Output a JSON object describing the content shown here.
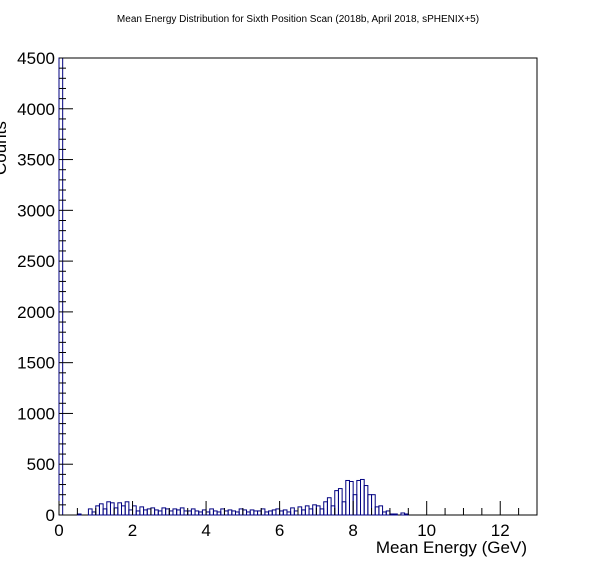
{
  "chart_data": {
    "type": "histogram",
    "title": "Mean Energy Distribution for Sixth Position Scan (2018b, April 2018, sPHENIX+5)",
    "xlabel": "Mean Energy (GeV)",
    "ylabel": "Counts",
    "xlim": [
      0,
      13
    ],
    "ylim": [
      0,
      4500
    ],
    "x_ticks": [
      0,
      2,
      4,
      6,
      8,
      10,
      12
    ],
    "y_ticks": [
      0,
      500,
      1000,
      1500,
      2000,
      2500,
      3000,
      3500,
      4000,
      4500
    ],
    "grid": false,
    "legend": "none",
    "line_color": "#000080",
    "bin_width": 0.1,
    "bin_start": 0.0,
    "values": [
      4500,
      0,
      0,
      0,
      0,
      10,
      0,
      0,
      60,
      30,
      90,
      110,
      60,
      130,
      120,
      70,
      120,
      90,
      130,
      50,
      90,
      40,
      80,
      50,
      60,
      70,
      50,
      40,
      70,
      60,
      40,
      60,
      50,
      70,
      40,
      40,
      60,
      40,
      30,
      50,
      30,
      60,
      40,
      30,
      60,
      40,
      50,
      40,
      30,
      60,
      50,
      30,
      50,
      40,
      40,
      60,
      30,
      40,
      50,
      60,
      40,
      50,
      30,
      70,
      40,
      80,
      50,
      90,
      60,
      100,
      90,
      60,
      130,
      170,
      90,
      240,
      260,
      130,
      340,
      330,
      200,
      340,
      350,
      290,
      200,
      200,
      80,
      90,
      30,
      40,
      10,
      10,
      0,
      20,
      10,
      0,
      0,
      0,
      0,
      0,
      0,
      0,
      0,
      0,
      0,
      0,
      0,
      0,
      0,
      0,
      0,
      0,
      0,
      0,
      0,
      0,
      0,
      0,
      0,
      0,
      0,
      0,
      0,
      0,
      0,
      0,
      0,
      0,
      0,
      0
    ]
  }
}
